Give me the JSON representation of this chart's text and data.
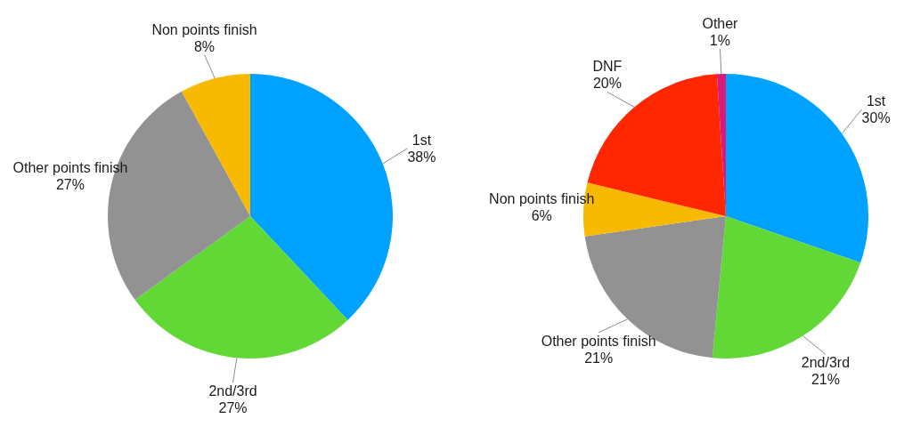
{
  "chart_data": [
    {
      "type": "pie",
      "categories": [
        "1st",
        "2nd/3rd",
        "Other points finish",
        "Non points finish"
      ],
      "values": [
        38,
        27,
        27,
        8
      ],
      "value_labels": [
        "38%",
        "27%",
        "27%",
        "8%"
      ],
      "colors": [
        "#00a2ff",
        "#61d836",
        "#929292",
        "#f8ba00"
      ]
    },
    {
      "type": "pie",
      "categories": [
        "1st",
        "2nd/3rd",
        "Other points finish",
        "Non points finish",
        "DNF",
        "Other"
      ],
      "values": [
        30,
        21,
        21,
        6,
        20,
        1
      ],
      "value_labels": [
        "30%",
        "21%",
        "21%",
        "6%",
        "20%",
        "1%"
      ],
      "colors": [
        "#00a2ff",
        "#61d836",
        "#929292",
        "#f8ba00",
        "#ff2600",
        "#d81b7a"
      ]
    }
  ]
}
